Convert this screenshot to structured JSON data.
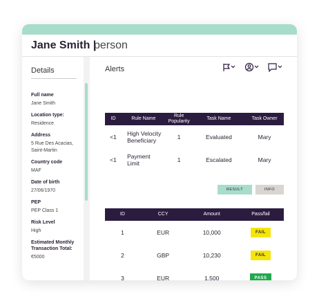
{
  "header": {
    "name": "Jane Smith |",
    "type": "person"
  },
  "details": {
    "title": "Details",
    "fields": [
      {
        "label": "Full name",
        "value": "Jane Smith"
      },
      {
        "label": "Location type:",
        "value": "Residence"
      },
      {
        "label": "Address",
        "value": "5 Rue Des Acacias, Saint-Martin"
      },
      {
        "label": "Country code",
        "value": "MAF"
      },
      {
        "label": "Date of birth",
        "value": "27/06/1970"
      },
      {
        "label": "PEP",
        "value": "PEP Class 1"
      },
      {
        "label": "Risk Level",
        "value": "High"
      },
      {
        "label": "Estimated Monthly Transaction Total:",
        "value": "€5000"
      }
    ]
  },
  "alerts": {
    "title": "Alerts",
    "table": {
      "columns": [
        "ID",
        "Rule Name",
        "Rule Popularity",
        "Task Name",
        "Task Owner"
      ],
      "rows": [
        [
          "<1",
          "High Velocity Beneficiary",
          "1",
          "Evaluated",
          "Mary"
        ],
        [
          "<1",
          "Payment Limit",
          "1",
          "Escalated",
          "Mary"
        ]
      ]
    },
    "buttons": [
      "RESULT",
      "INFO"
    ],
    "results": {
      "columns": [
        "ID",
        "CCY",
        "Amount",
        "Pass/fail"
      ],
      "rows": [
        [
          "1",
          "EUR",
          "10,000",
          "FAIL"
        ],
        [
          "2",
          "GBP",
          "10,230",
          "FAIL"
        ],
        [
          "3",
          "EUR",
          "1,500",
          "PASS"
        ]
      ]
    }
  }
}
